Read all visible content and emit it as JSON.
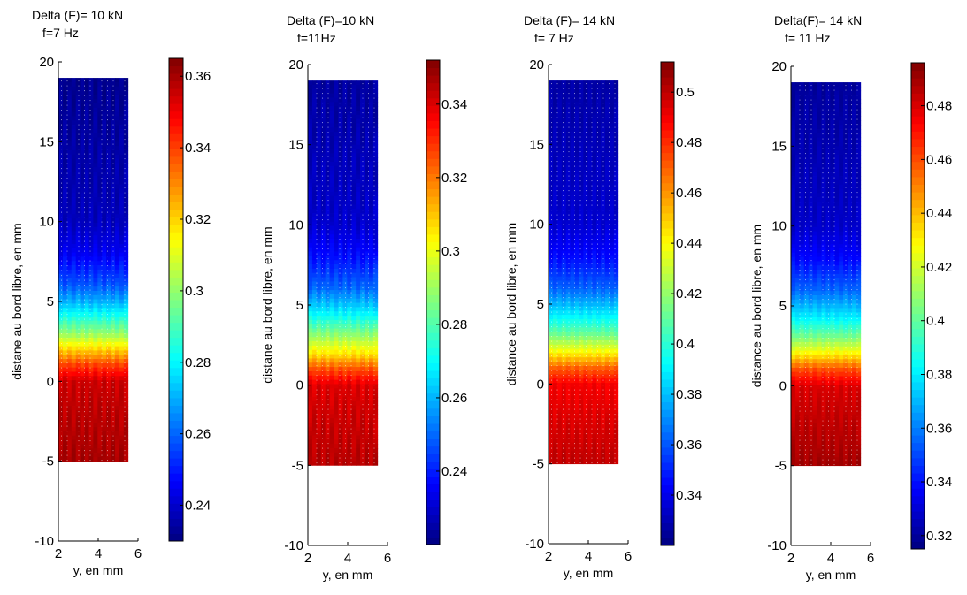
{
  "chart_data": [
    {
      "type": "heatmap",
      "title": [
        "Delta (F)= 10 kN",
        "f=7 Hz"
      ],
      "xlabel": "y, en mm",
      "ylabel": "distane au bord libre, en mm",
      "xlim": [
        2,
        6
      ],
      "ylim": [
        -10,
        20
      ],
      "xticks": [
        "2",
        "4",
        "6"
      ],
      "yticks": [
        "-10",
        "-5",
        "0",
        "5",
        "10",
        "15",
        "20"
      ],
      "data_extent": {
        "x": [
          2,
          5.5
        ],
        "y": [
          -5,
          19
        ]
      },
      "colorbar": {
        "range": [
          0.23,
          0.365
        ],
        "ticks": [
          "0.24",
          "0.26",
          "0.28",
          "0.3",
          "0.32",
          "0.34",
          "0.36"
        ]
      },
      "profile": {
        "d": [
          -5,
          0,
          1,
          2,
          3,
          4,
          5,
          6,
          8,
          10,
          19
        ],
        "value": [
          0.36,
          0.355,
          0.34,
          0.32,
          0.3,
          0.285,
          0.27,
          0.258,
          0.245,
          0.238,
          0.232
        ]
      }
    },
    {
      "type": "heatmap",
      "title": [
        "Delta (F)=10 kN",
        "f=11Hz"
      ],
      "xlabel": "y, en mm",
      "ylabel": "distane au bord libre, en mm",
      "xlim": [
        2,
        6
      ],
      "ylim": [
        -10,
        20
      ],
      "xticks": [
        "2",
        "4",
        "6"
      ],
      "yticks": [
        "-10",
        "-5",
        "0",
        "5",
        "10",
        "15",
        "20"
      ],
      "data_extent": {
        "x": [
          2,
          5.5
        ],
        "y": [
          -5,
          19
        ]
      },
      "colorbar": {
        "range": [
          0.22,
          0.352
        ],
        "ticks": [
          "0.24",
          "0.26",
          "0.28",
          "0.3",
          "0.32",
          "0.34"
        ]
      },
      "profile": {
        "d": [
          -5,
          0,
          1,
          2,
          3,
          4,
          5,
          6,
          8,
          10,
          19
        ],
        "value": [
          0.345,
          0.34,
          0.325,
          0.305,
          0.29,
          0.275,
          0.262,
          0.25,
          0.238,
          0.23,
          0.224
        ]
      }
    },
    {
      "type": "heatmap",
      "title": [
        "Delta (F)= 14 kN",
        "f= 7 Hz"
      ],
      "xlabel": "y, en mm",
      "ylabel": "distance au bord libre, en mm",
      "xlim": [
        2,
        6
      ],
      "ylim": [
        -10,
        20
      ],
      "xticks": [
        "2",
        "4",
        "6"
      ],
      "yticks": [
        "-10",
        "-5",
        "0",
        "5",
        "10",
        "15",
        "20"
      ],
      "data_extent": {
        "x": [
          2,
          5.5
        ],
        "y": [
          -5,
          19
        ]
      },
      "colorbar": {
        "range": [
          0.32,
          0.512
        ],
        "ticks": [
          "0.34",
          "0.36",
          "0.38",
          "0.4",
          "0.42",
          "0.44",
          "0.46",
          "0.48",
          "0.5"
        ]
      },
      "profile": {
        "d": [
          -5,
          0,
          1,
          2,
          3,
          4,
          5,
          6,
          8,
          10,
          19
        ],
        "value": [
          0.5,
          0.49,
          0.47,
          0.44,
          0.415,
          0.395,
          0.378,
          0.362,
          0.345,
          0.335,
          0.327
        ]
      }
    },
    {
      "type": "heatmap",
      "title": [
        "Delta(F)= 14 kN",
        "f= 11 Hz"
      ],
      "xlabel": "y, en mm",
      "ylabel": "distance au bord libre, en mm",
      "xlim": [
        2,
        6
      ],
      "ylim": [
        -10,
        20
      ],
      "xticks": [
        "2",
        "4",
        "6"
      ],
      "yticks": [
        "-10",
        "-5",
        "0",
        "5",
        "10",
        "15",
        "20"
      ],
      "data_extent": {
        "x": [
          2,
          5.5
        ],
        "y": [
          -5,
          19
        ]
      },
      "colorbar": {
        "range": [
          0.315,
          0.496
        ],
        "ticks": [
          "0.32",
          "0.34",
          "0.36",
          "0.38",
          "0.4",
          "0.42",
          "0.44",
          "0.46",
          "0.48"
        ]
      },
      "profile": {
        "d": [
          -5,
          0,
          1,
          2,
          3,
          4,
          5,
          6,
          8,
          10,
          19
        ],
        "value": [
          0.49,
          0.48,
          0.46,
          0.43,
          0.405,
          0.385,
          0.37,
          0.355,
          0.338,
          0.328,
          0.32
        ]
      }
    }
  ],
  "colormap": "jet"
}
